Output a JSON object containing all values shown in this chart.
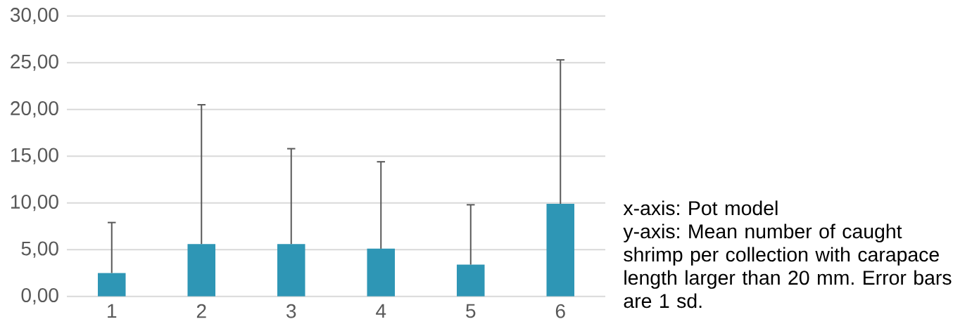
{
  "chart_data": {
    "type": "bar",
    "categories": [
      "1",
      "2",
      "3",
      "4",
      "5",
      "6"
    ],
    "values": [
      2.5,
      5.6,
      5.6,
      5.1,
      3.4,
      9.9
    ],
    "errors": [
      [
        2.5,
        7.9
      ],
      [
        5.6,
        20.5
      ],
      [
        5.6,
        15.8
      ],
      [
        5.1,
        14.4
      ],
      [
        3.4,
        9.8
      ],
      [
        9.9,
        25.3
      ]
    ],
    "color": "#2e96b5",
    "ylim": [
      0,
      30
    ],
    "yticks": [
      {
        "value": 0,
        "label": "0,00"
      },
      {
        "value": 5,
        "label": "5,00"
      },
      {
        "value": 10,
        "label": "10,00"
      },
      {
        "value": 15,
        "label": "15,00"
      },
      {
        "value": 20,
        "label": "20,00"
      },
      {
        "value": 25,
        "label": "25,00"
      },
      {
        "value": 30,
        "label": "30,00"
      }
    ],
    "grid": "y",
    "annotations": [
      "x-axis: Pot model",
      "y-axis: Mean number of caught shrimp per collection with carapace length larger than 20 mm. Error bars are 1 sd."
    ]
  }
}
